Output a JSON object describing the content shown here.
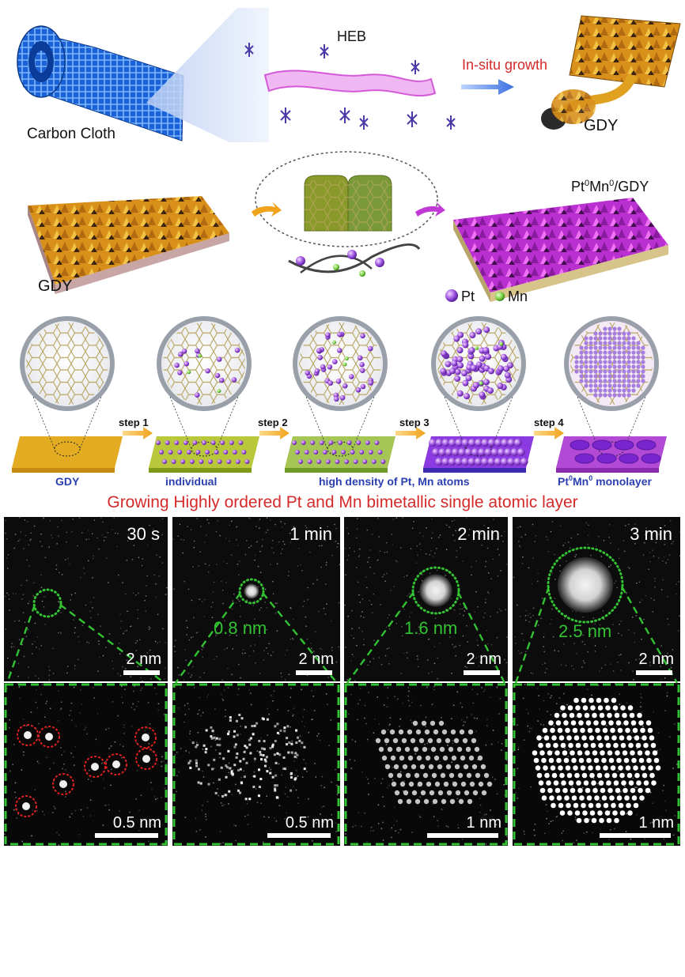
{
  "top": {
    "carbon_cloth_label": "Carbon Cloth",
    "heb_label": "HEB",
    "insitu_label": "In-situ growth",
    "gdy_label": "GDY"
  },
  "middle": {
    "gdy_label": "GDY",
    "ptmn_prefix": "Pt",
    "ptmn_sup1": "0",
    "ptmn_mid": "Mn",
    "ptmn_sup2": "0",
    "ptmn_suffix": "/GDY"
  },
  "legend": {
    "pt_label": "Pt",
    "mn_label": "Mn"
  },
  "steps": {
    "items": [
      "step 1",
      "step 2",
      "step 3",
      "step 4"
    ],
    "captions": [
      "GDY",
      "individual",
      "high density of Pt, Mn atoms",
      "Pt",
      "0",
      "Mn",
      "0",
      " monolayer"
    ]
  },
  "headline": "Growing Highly ordered Pt and Mn bimetallic single atomic layer",
  "tem": {
    "panels": [
      {
        "time": "30 s",
        "size": "",
        "scale_top": "2 nm",
        "scale_bottom": "0.5 nm"
      },
      {
        "time": "1 min",
        "size": "0.8 nm",
        "scale_top": "2 nm",
        "scale_bottom": "0.5 nm"
      },
      {
        "time": "2 min",
        "size": "1.6 nm",
        "scale_top": "2 nm",
        "scale_bottom": "1 nm"
      },
      {
        "time": "3 min",
        "size": "2.5 nm",
        "scale_top": "2 nm",
        "scale_bottom": "1 nm"
      }
    ]
  },
  "colors": {
    "gdy_gold": "#e9a51b",
    "magenta": "#c23ad6",
    "headline_red": "#d42a2a",
    "step_blue": "#2b3fb0",
    "dash_green": "#33c233",
    "cloth_blue": "#1d6fe0"
  }
}
